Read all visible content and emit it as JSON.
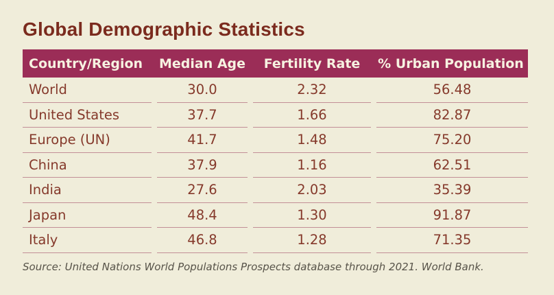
{
  "title": "Global Demographic Statistics",
  "source_note": "Source: United Nations World Populations Prospects database through 2021. World Bank.",
  "colors": {
    "background": "#f0edda",
    "title_text": "#7b2b1e",
    "header_background": "#9b2d57",
    "header_text": "#f7f2e1",
    "body_text": "#85392b",
    "row_divider": "#c28e96",
    "source_text": "#575349"
  },
  "chart_data": {
    "type": "table",
    "title": "Global Demographic Statistics",
    "columns": [
      "Country/Region",
      "Median Age",
      "Fertility Rate",
      "% Urban Population"
    ],
    "rows": [
      [
        "World",
        "30.0",
        "2.32",
        "56.48"
      ],
      [
        "United States",
        "37.7",
        "1.66",
        "82.87"
      ],
      [
        "Europe (UN)",
        "41.7",
        "1.48",
        "75.20"
      ],
      [
        "China",
        "37.9",
        "1.16",
        "62.51"
      ],
      [
        "India",
        "27.6",
        "2.03",
        "35.39"
      ],
      [
        "Japan",
        "48.4",
        "1.30",
        "91.87"
      ],
      [
        "Italy",
        "46.8",
        "1.28",
        "71.35"
      ]
    ],
    "source": "Source: United Nations World Populations Prospects database through 2021. World Bank."
  }
}
